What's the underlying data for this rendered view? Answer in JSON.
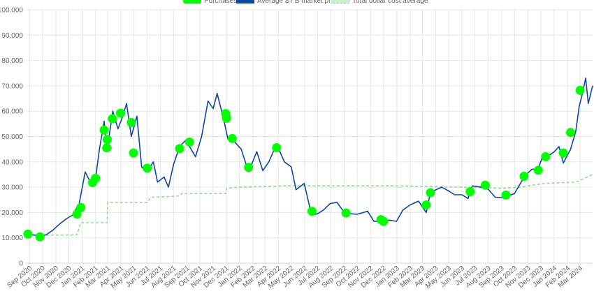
{
  "chart_data": {
    "type": "line",
    "title": "",
    "xlabel": "",
    "ylabel": "",
    "ylim": [
      0,
      100000
    ],
    "grid": true,
    "legend_position": "top",
    "legend": [
      {
        "label": "Purchases",
        "color": "#00ff00",
        "style": "circle-marker"
      },
      {
        "label": "Average $ / B market price",
        "color": "#0d47a1",
        "style": "solid-line"
      },
      {
        "label": "Total dollar cost average",
        "color": "#8ed88e",
        "style": "dashed-line"
      }
    ],
    "y_ticks": [
      {
        "value": 0,
        "label": "0"
      },
      {
        "value": 10000,
        "label": "10.000"
      },
      {
        "value": 20000,
        "label": "20.000"
      },
      {
        "value": 30000,
        "label": "30.000"
      },
      {
        "value": 40000,
        "label": "40.000"
      },
      {
        "value": 50000,
        "label": "50.000"
      },
      {
        "value": 60000,
        "label": "60.000"
      },
      {
        "value": 70000,
        "label": "70.000"
      },
      {
        "value": 80000,
        "label": "80.000"
      },
      {
        "value": 90000,
        "label": "90.000"
      },
      {
        "value": 100000,
        "label": "100.000"
      }
    ],
    "x_ticks": [
      "Sep 2020",
      "Oct 2020",
      "Nov 2020",
      "Dec 2020",
      "Jan 2021",
      "Feb 2021",
      "Mar 2021",
      "Apr 2021",
      "May 2021",
      "Jun 2021",
      "Jul 2021",
      "Aug 2021",
      "Sep 2021",
      "Oct 2021",
      "Nov 2021",
      "Dec 2021",
      "Jan 2022",
      "Feb 2022",
      "Mar 2022",
      "Apr 2022",
      "May 2022",
      "Jun 2022",
      "Jul 2022",
      "Aug 2022",
      "Sep 2022",
      "Oct 2022",
      "Nov 2022",
      "Dec 2022",
      "Jan 2023",
      "Feb 2023",
      "Mar 2023",
      "Apr 2023",
      "May 2023",
      "Jun 2023",
      "Jul 2023",
      "Aug 2023",
      "Sep 2023",
      "Oct 2023",
      "Nov 2023",
      "Dec 2023",
      "Jan 2024",
      "Feb 2024",
      "Mar 2024"
    ],
    "x_range": [
      "2020-08-25",
      "2024-03-30"
    ],
    "series": [
      {
        "name": "Average $ / B market price",
        "color": "#0d47a1",
        "points": [
          [
            "2020-08-25",
            11500
          ],
          [
            "2020-09-15",
            11000
          ],
          [
            "2020-09-25",
            10500
          ],
          [
            "2020-10-10",
            11300
          ],
          [
            "2020-10-25",
            13000
          ],
          [
            "2020-11-10",
            15500
          ],
          [
            "2020-11-25",
            17500
          ],
          [
            "2020-12-10",
            19000
          ],
          [
            "2020-12-25",
            23500
          ],
          [
            "2021-01-08",
            36000
          ],
          [
            "2021-01-20",
            32000
          ],
          [
            "2021-02-01",
            33500
          ],
          [
            "2021-02-10",
            45000
          ],
          [
            "2021-02-21",
            56000
          ],
          [
            "2021-02-28",
            45000
          ],
          [
            "2021-03-13",
            60000
          ],
          [
            "2021-03-25",
            53000
          ],
          [
            "2021-04-05",
            58000
          ],
          [
            "2021-04-14",
            63000
          ],
          [
            "2021-04-25",
            50000
          ],
          [
            "2021-05-08",
            58000
          ],
          [
            "2021-05-19",
            38000
          ],
          [
            "2021-06-01",
            36000
          ],
          [
            "2021-06-15",
            40000
          ],
          [
            "2021-06-25",
            32000
          ],
          [
            "2021-07-10",
            34000
          ],
          [
            "2021-07-20",
            30000
          ],
          [
            "2021-08-01",
            39000
          ],
          [
            "2021-08-15",
            46000
          ],
          [
            "2021-09-01",
            49000
          ],
          [
            "2021-09-07",
            46000
          ],
          [
            "2021-09-21",
            42000
          ],
          [
            "2021-10-05",
            50000
          ],
          [
            "2021-10-20",
            64000
          ],
          [
            "2021-11-01",
            61000
          ],
          [
            "2021-11-10",
            67000
          ],
          [
            "2021-11-25",
            57000
          ],
          [
            "2021-12-05",
            49000
          ],
          [
            "2021-12-20",
            48000
          ],
          [
            "2022-01-05",
            45000
          ],
          [
            "2022-01-22",
            36000
          ],
          [
            "2022-02-10",
            44000
          ],
          [
            "2022-02-24",
            36500
          ],
          [
            "2022-03-10",
            40000
          ],
          [
            "2022-03-28",
            47000
          ],
          [
            "2022-04-15",
            40000
          ],
          [
            "2022-05-01",
            38000
          ],
          [
            "2022-05-12",
            29000
          ],
          [
            "2022-05-31",
            31500
          ],
          [
            "2022-06-13",
            22000
          ],
          [
            "2022-06-18",
            19000
          ],
          [
            "2022-07-01",
            19500
          ],
          [
            "2022-07-15",
            21000
          ],
          [
            "2022-07-30",
            23500
          ],
          [
            "2022-08-15",
            24000
          ],
          [
            "2022-09-01",
            20000
          ],
          [
            "2022-09-15",
            19500
          ],
          [
            "2022-10-01",
            19300
          ],
          [
            "2022-10-25",
            20500
          ],
          [
            "2022-11-09",
            16500
          ],
          [
            "2022-11-25",
            16500
          ],
          [
            "2022-12-15",
            17000
          ],
          [
            "2022-12-31",
            16500
          ],
          [
            "2023-01-15",
            21000
          ],
          [
            "2023-02-01",
            23000
          ],
          [
            "2023-02-20",
            24500
          ],
          [
            "2023-03-10",
            20000
          ],
          [
            "2023-03-20",
            28000
          ],
          [
            "2023-04-15",
            30000
          ],
          [
            "2023-05-01",
            28500
          ],
          [
            "2023-05-15",
            27000
          ],
          [
            "2023-06-01",
            27000
          ],
          [
            "2023-06-15",
            25500
          ],
          [
            "2023-06-25",
            30500
          ],
          [
            "2023-07-15",
            30000
          ],
          [
            "2023-08-01",
            29200
          ],
          [
            "2023-08-17",
            26000
          ],
          [
            "2023-09-01",
            25800
          ],
          [
            "2023-09-15",
            26500
          ],
          [
            "2023-10-01",
            27500
          ],
          [
            "2023-10-25",
            34500
          ],
          [
            "2023-11-10",
            37000
          ],
          [
            "2023-11-25",
            37500
          ],
          [
            "2023-12-08",
            43500
          ],
          [
            "2023-12-20",
            42500
          ],
          [
            "2024-01-01",
            44000
          ],
          [
            "2024-01-12",
            46000
          ],
          [
            "2024-01-22",
            39500
          ],
          [
            "2024-02-08",
            45000
          ],
          [
            "2024-02-20",
            52000
          ],
          [
            "2024-02-28",
            62000
          ],
          [
            "2024-03-05",
            66000
          ],
          [
            "2024-03-14",
            73000
          ],
          [
            "2024-03-20",
            63000
          ],
          [
            "2024-03-30",
            70000
          ]
        ]
      },
      {
        "name": "Total dollar cost average",
        "color": "#8ed88e",
        "points": [
          [
            "2020-08-25",
            11500
          ],
          [
            "2020-09-24",
            11000
          ],
          [
            "2020-12-20",
            11200
          ],
          [
            "2020-12-29",
            16000
          ],
          [
            "2021-02-28",
            16000
          ],
          [
            "2021-03-01",
            24000
          ],
          [
            "2021-06-01",
            24000
          ],
          [
            "2021-06-10",
            26000
          ],
          [
            "2021-08-15",
            26500
          ],
          [
            "2021-08-20",
            27500
          ],
          [
            "2021-11-30",
            27500
          ],
          [
            "2021-12-02",
            29500
          ],
          [
            "2021-12-30",
            30000
          ],
          [
            "2022-04-15",
            30500
          ],
          [
            "2022-12-31",
            30500
          ],
          [
            "2023-06-01",
            30000
          ],
          [
            "2023-09-01",
            29500
          ],
          [
            "2023-10-15",
            30000
          ],
          [
            "2023-11-20",
            31000
          ],
          [
            "2023-12-10",
            31500
          ],
          [
            "2024-02-20",
            32000
          ],
          [
            "2024-03-05",
            33000
          ],
          [
            "2024-03-30",
            35000
          ]
        ]
      },
      {
        "name": "Purchases",
        "color": "#00ff00",
        "points": [
          [
            "2020-08-28",
            11500
          ],
          [
            "2020-09-25",
            10400
          ],
          [
            "2020-12-20",
            19400
          ],
          [
            "2020-12-29",
            22000
          ],
          [
            "2021-01-25",
            31800
          ],
          [
            "2021-02-01",
            33500
          ],
          [
            "2021-02-21",
            52500
          ],
          [
            "2021-02-27",
            45500
          ],
          [
            "2021-02-28",
            48800
          ],
          [
            "2021-03-12",
            57000
          ],
          [
            "2021-03-31",
            59200
          ],
          [
            "2021-04-25",
            55500
          ],
          [
            "2021-04-30",
            43500
          ],
          [
            "2021-06-01",
            37500
          ],
          [
            "2021-08-15",
            45200
          ],
          [
            "2021-09-07",
            47800
          ],
          [
            "2021-11-30",
            59000
          ],
          [
            "2021-12-02",
            57200
          ],
          [
            "2021-12-15",
            49200
          ],
          [
            "2022-01-22",
            37800
          ],
          [
            "2022-03-28",
            45600
          ],
          [
            "2022-06-18",
            20500
          ],
          [
            "2022-09-05",
            19800
          ],
          [
            "2022-11-25",
            17200
          ],
          [
            "2022-12-01",
            16500
          ],
          [
            "2023-03-10",
            23000
          ],
          [
            "2023-03-20",
            27800
          ],
          [
            "2023-06-20",
            28200
          ],
          [
            "2023-07-25",
            30800
          ],
          [
            "2023-09-11",
            26900
          ],
          [
            "2023-10-23",
            34300
          ],
          [
            "2023-11-25",
            36700
          ],
          [
            "2023-12-12",
            42000
          ],
          [
            "2024-01-22",
            43500
          ],
          [
            "2024-02-08",
            51600
          ],
          [
            "2024-03-01",
            68200
          ]
        ]
      }
    ]
  }
}
